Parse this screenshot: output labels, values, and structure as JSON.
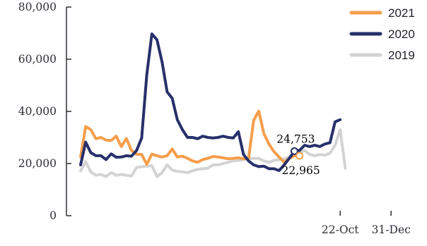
{
  "chart_data": {
    "type": "line",
    "ylim": [
      0,
      80000
    ],
    "y_ticks": [
      0,
      20000,
      40000,
      60000,
      80000
    ],
    "y_tick_labels": [
      "0",
      "20,000",
      "40,000",
      "60,000",
      "80,000"
    ],
    "x_tick_labels": [
      {
        "label": "22-Oct",
        "index": 51
      },
      {
        "label": "31-Dec",
        "index": 61
      }
    ],
    "grid": false,
    "legend_position": "top-right",
    "series": [
      {
        "name": "2021",
        "color": "#F59E4C",
        "values": [
          22500,
          34200,
          33000,
          29500,
          30000,
          29000,
          28800,
          30500,
          26500,
          29600,
          25000,
          23600,
          23500,
          19700,
          23600,
          23000,
          22500,
          23000,
          25600,
          22500,
          22800,
          22000,
          21000,
          20500,
          21500,
          22000,
          22700,
          22500,
          22200,
          21800,
          22000,
          22200,
          21800,
          22000,
          36500,
          40100,
          31500,
          27500,
          24500,
          22500,
          20500,
          22000,
          23000,
          22965
        ]
      },
      {
        "name": "2020",
        "color": "#27306A",
        "values": [
          19500,
          28200,
          24200,
          23000,
          23000,
          21500,
          23700,
          22400,
          22500,
          23000,
          22800,
          25000,
          29800,
          54000,
          69700,
          67500,
          59000,
          47500,
          45000,
          36800,
          33000,
          30000,
          30000,
          29500,
          30500,
          30000,
          29800,
          30000,
          30500,
          30000,
          29800,
          32200,
          23500,
          21000,
          19500,
          18800,
          19000,
          18000,
          18000,
          17300,
          19500,
          22000,
          24753,
          25000,
          27000,
          26500,
          27000,
          26500,
          27500,
          28000,
          36000,
          36800
        ]
      },
      {
        "name": "2019",
        "color": "#D3D3D3",
        "values": [
          17200,
          20700,
          16800,
          15500,
          15800,
          15000,
          16500,
          15500,
          15800,
          15500,
          15200,
          18500,
          18800,
          19000,
          19200,
          15000,
          16500,
          19500,
          17500,
          17000,
          16800,
          16500,
          17200,
          17800,
          18000,
          18200,
          19500,
          19500,
          20000,
          20500,
          21000,
          21200,
          21500,
          21800,
          22000,
          22000,
          21000,
          20500,
          21200,
          21500,
          21800,
          22500,
          23500,
          24000,
          25000,
          23500,
          23000,
          23500,
          23200,
          24000,
          27000,
          33000,
          18200
        ]
      }
    ],
    "annotations": [
      {
        "series": "2020",
        "index": 42,
        "value": 24753,
        "label": "24,753",
        "placement": "above"
      },
      {
        "series": "2021",
        "index": 43,
        "value": 22965,
        "label": "22,965",
        "placement": "below"
      }
    ]
  }
}
